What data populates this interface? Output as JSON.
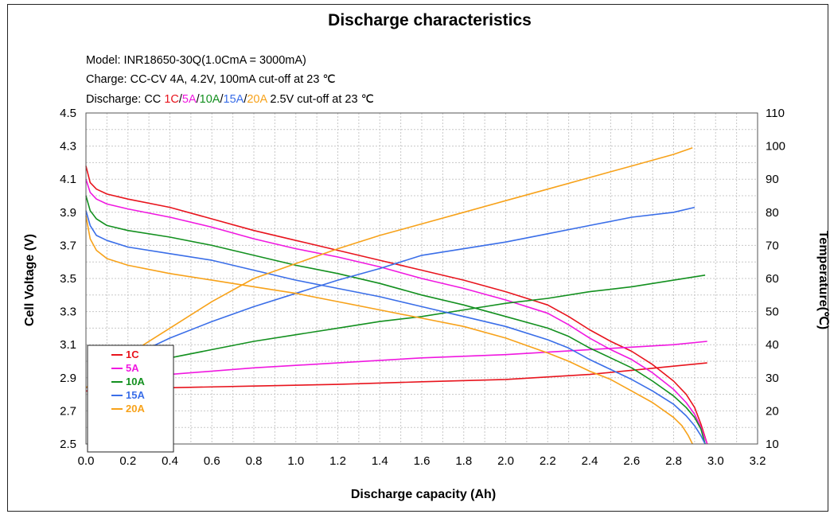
{
  "chart_data": {
    "type": "line",
    "title": "Discharge characteristics",
    "info": {
      "model": "Model: INR18650-30Q(1.0CmA = 3000mA)",
      "charge": "Charge: CC-CV 4A, 4.2V, 100mA cut-off at 23 ℃",
      "discharge_prefix": "Discharge: CC ",
      "discharge_rates": [
        {
          "text": "1C",
          "color": "#e8141d"
        },
        {
          "text": "/",
          "color": "#000000"
        },
        {
          "text": "5A",
          "color": "#f018e0"
        },
        {
          "text": "/",
          "color": "#000000"
        },
        {
          "text": "10A",
          "color": "#13901f"
        },
        {
          "text": "/",
          "color": "#000000"
        },
        {
          "text": "15A",
          "color": "#3a6ee8"
        },
        {
          "text": "/",
          "color": "#000000"
        },
        {
          "text": "20A",
          "color": "#f7a21a"
        }
      ],
      "discharge_suffix": " 2.5V cut-off at 23 ℃"
    },
    "xlabel": "Discharge capacity (Ah)",
    "ylabel": "Cell Voltage (V)",
    "y2label": "Temperature(℃)",
    "xlim": [
      0.0,
      3.2
    ],
    "ylim": [
      2.5,
      4.5
    ],
    "y2lim": [
      10,
      110
    ],
    "xticks": [
      "0.0",
      "0.2",
      "0.4",
      "0.6",
      "0.8",
      "1.0",
      "1.2",
      "1.4",
      "1.6",
      "1.8",
      "2.0",
      "2.2",
      "2.4",
      "2.6",
      "2.8",
      "3.0",
      "3.2"
    ],
    "yticks": [
      "2.5",
      "2.7",
      "2.9",
      "3.1",
      "3.3",
      "3.5",
      "3.7",
      "3.9",
      "4.1",
      "4.3",
      "4.5"
    ],
    "y2ticks": [
      "10",
      "20",
      "30",
      "40",
      "50",
      "60",
      "70",
      "80",
      "90",
      "100",
      "110"
    ],
    "grid": true,
    "legend": "bottom-left",
    "series": [
      {
        "name": "1C",
        "color": "#e8141d",
        "voltage": [
          [
            0,
            4.18
          ],
          [
            0.02,
            4.08
          ],
          [
            0.05,
            4.04
          ],
          [
            0.1,
            4.01
          ],
          [
            0.2,
            3.98
          ],
          [
            0.4,
            3.93
          ],
          [
            0.6,
            3.86
          ],
          [
            0.8,
            3.79
          ],
          [
            1.0,
            3.73
          ],
          [
            1.2,
            3.67
          ],
          [
            1.4,
            3.61
          ],
          [
            1.6,
            3.55
          ],
          [
            1.8,
            3.49
          ],
          [
            2.0,
            3.42
          ],
          [
            2.2,
            3.34
          ],
          [
            2.3,
            3.27
          ],
          [
            2.4,
            3.19
          ],
          [
            2.5,
            3.12
          ],
          [
            2.6,
            3.06
          ],
          [
            2.7,
            2.98
          ],
          [
            2.8,
            2.88
          ],
          [
            2.86,
            2.8
          ],
          [
            2.9,
            2.72
          ],
          [
            2.93,
            2.62
          ],
          [
            2.96,
            2.5
          ]
        ],
        "temperature": [
          [
            0,
            26
          ],
          [
            0.2,
            26.5
          ],
          [
            0.4,
            27
          ],
          [
            0.8,
            27.5
          ],
          [
            1.2,
            28
          ],
          [
            1.6,
            28.8
          ],
          [
            2.0,
            29.5
          ],
          [
            2.4,
            31
          ],
          [
            2.8,
            33.5
          ],
          [
            2.96,
            34.5
          ]
        ]
      },
      {
        "name": "5A",
        "color": "#f018e0",
        "voltage": [
          [
            0,
            4.1
          ],
          [
            0.02,
            4.02
          ],
          [
            0.05,
            3.98
          ],
          [
            0.1,
            3.95
          ],
          [
            0.2,
            3.92
          ],
          [
            0.4,
            3.87
          ],
          [
            0.6,
            3.81
          ],
          [
            0.8,
            3.74
          ],
          [
            1.0,
            3.68
          ],
          [
            1.2,
            3.63
          ],
          [
            1.4,
            3.57
          ],
          [
            1.6,
            3.5
          ],
          [
            1.8,
            3.44
          ],
          [
            2.0,
            3.37
          ],
          [
            2.2,
            3.29
          ],
          [
            2.3,
            3.22
          ],
          [
            2.4,
            3.14
          ],
          [
            2.5,
            3.07
          ],
          [
            2.6,
            3.01
          ],
          [
            2.7,
            2.93
          ],
          [
            2.8,
            2.83
          ],
          [
            2.86,
            2.75
          ],
          [
            2.9,
            2.68
          ],
          [
            2.93,
            2.6
          ],
          [
            2.96,
            2.5
          ]
        ],
        "temperature": [
          [
            0,
            27
          ],
          [
            0.2,
            29
          ],
          [
            0.4,
            31
          ],
          [
            0.8,
            33
          ],
          [
            1.2,
            34.5
          ],
          [
            1.6,
            36
          ],
          [
            2.0,
            37
          ],
          [
            2.4,
            38.5
          ],
          [
            2.8,
            40
          ],
          [
            2.96,
            41
          ]
        ]
      },
      {
        "name": "10A",
        "color": "#13901f",
        "voltage": [
          [
            0,
            4.0
          ],
          [
            0.02,
            3.91
          ],
          [
            0.05,
            3.86
          ],
          [
            0.1,
            3.82
          ],
          [
            0.2,
            3.79
          ],
          [
            0.4,
            3.75
          ],
          [
            0.6,
            3.7
          ],
          [
            0.8,
            3.64
          ],
          [
            1.0,
            3.58
          ],
          [
            1.2,
            3.53
          ],
          [
            1.4,
            3.47
          ],
          [
            1.6,
            3.4
          ],
          [
            1.8,
            3.34
          ],
          [
            2.0,
            3.27
          ],
          [
            2.2,
            3.2
          ],
          [
            2.3,
            3.15
          ],
          [
            2.4,
            3.08
          ],
          [
            2.5,
            3.02
          ],
          [
            2.6,
            2.96
          ],
          [
            2.7,
            2.88
          ],
          [
            2.8,
            2.79
          ],
          [
            2.86,
            2.72
          ],
          [
            2.9,
            2.66
          ],
          [
            2.93,
            2.59
          ],
          [
            2.95,
            2.5
          ]
        ],
        "temperature": [
          [
            0,
            27
          ],
          [
            0.2,
            33
          ],
          [
            0.4,
            36
          ],
          [
            0.6,
            38.5
          ],
          [
            0.8,
            41
          ],
          [
            1.0,
            43
          ],
          [
            1.2,
            45
          ],
          [
            1.4,
            47
          ],
          [
            1.6,
            48.5
          ],
          [
            1.8,
            50.5
          ],
          [
            2.0,
            52.5
          ],
          [
            2.2,
            54
          ],
          [
            2.4,
            56
          ],
          [
            2.6,
            57.5
          ],
          [
            2.8,
            59.5
          ],
          [
            2.95,
            61
          ]
        ]
      },
      {
        "name": "15A",
        "color": "#3a6ee8",
        "voltage": [
          [
            0,
            3.91
          ],
          [
            0.02,
            3.82
          ],
          [
            0.05,
            3.76
          ],
          [
            0.1,
            3.73
          ],
          [
            0.2,
            3.69
          ],
          [
            0.4,
            3.65
          ],
          [
            0.6,
            3.61
          ],
          [
            0.8,
            3.55
          ],
          [
            1.0,
            3.49
          ],
          [
            1.2,
            3.44
          ],
          [
            1.4,
            3.39
          ],
          [
            1.6,
            3.33
          ],
          [
            1.8,
            3.27
          ],
          [
            2.0,
            3.21
          ],
          [
            2.2,
            3.13
          ],
          [
            2.3,
            3.08
          ],
          [
            2.4,
            3.01
          ],
          [
            2.5,
            2.95
          ],
          [
            2.6,
            2.89
          ],
          [
            2.7,
            2.82
          ],
          [
            2.8,
            2.74
          ],
          [
            2.86,
            2.67
          ],
          [
            2.9,
            2.61
          ],
          [
            2.93,
            2.55
          ],
          [
            2.95,
            2.5
          ]
        ],
        "temperature": [
          [
            0,
            27
          ],
          [
            0.2,
            36
          ],
          [
            0.4,
            42
          ],
          [
            0.6,
            47
          ],
          [
            0.8,
            51.5
          ],
          [
            1.0,
            55.5
          ],
          [
            1.2,
            59.5
          ],
          [
            1.4,
            63
          ],
          [
            1.6,
            67
          ],
          [
            1.8,
            69
          ],
          [
            2.0,
            71
          ],
          [
            2.2,
            73.5
          ],
          [
            2.4,
            76
          ],
          [
            2.6,
            78.5
          ],
          [
            2.8,
            80
          ],
          [
            2.9,
            81.5
          ]
        ]
      },
      {
        "name": "20A",
        "color": "#f7a21a",
        "voltage": [
          [
            0,
            3.88
          ],
          [
            0.02,
            3.74
          ],
          [
            0.05,
            3.67
          ],
          [
            0.1,
            3.62
          ],
          [
            0.2,
            3.58
          ],
          [
            0.4,
            3.53
          ],
          [
            0.6,
            3.49
          ],
          [
            0.8,
            3.45
          ],
          [
            1.0,
            3.41
          ],
          [
            1.2,
            3.36
          ],
          [
            1.4,
            3.31
          ],
          [
            1.6,
            3.26
          ],
          [
            1.8,
            3.21
          ],
          [
            2.0,
            3.14
          ],
          [
            2.2,
            3.05
          ],
          [
            2.3,
            3.0
          ],
          [
            2.4,
            2.94
          ],
          [
            2.5,
            2.89
          ],
          [
            2.6,
            2.82
          ],
          [
            2.7,
            2.75
          ],
          [
            2.8,
            2.66
          ],
          [
            2.84,
            2.61
          ],
          [
            2.87,
            2.55
          ],
          [
            2.89,
            2.5
          ]
        ],
        "temperature": [
          [
            0,
            27
          ],
          [
            0.2,
            37
          ],
          [
            0.4,
            45
          ],
          [
            0.6,
            53
          ],
          [
            0.8,
            60
          ],
          [
            1.0,
            64.5
          ],
          [
            1.2,
            69
          ],
          [
            1.4,
            73
          ],
          [
            1.6,
            76.5
          ],
          [
            1.8,
            80
          ],
          [
            2.0,
            83.5
          ],
          [
            2.2,
            87
          ],
          [
            2.4,
            90.5
          ],
          [
            2.6,
            94
          ],
          [
            2.8,
            97.5
          ],
          [
            2.89,
            99.5
          ]
        ]
      }
    ]
  }
}
